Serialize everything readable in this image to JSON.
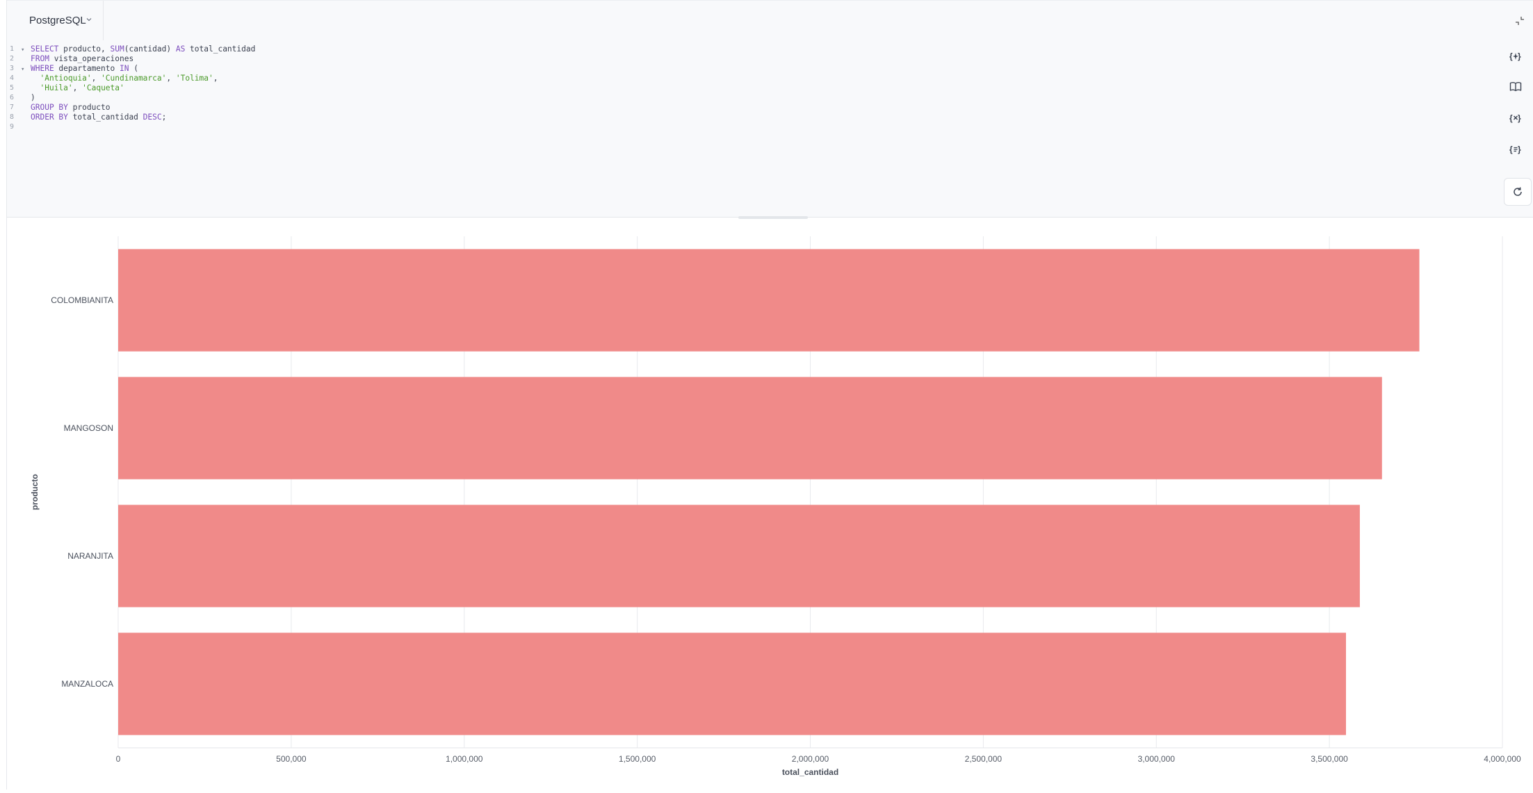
{
  "toolbar": {
    "dialect_label": "PostgreSQL",
    "dialect_chevron_icon": "chevron-down-icon",
    "collapse_icon": "collapse-arrows-icon"
  },
  "editor": {
    "lines": [
      {
        "n": "1",
        "fold": true
      },
      {
        "n": "2",
        "fold": false
      },
      {
        "n": "3",
        "fold": true
      },
      {
        "n": "4",
        "fold": false
      },
      {
        "n": "5",
        "fold": false
      },
      {
        "n": "6",
        "fold": false
      },
      {
        "n": "7",
        "fold": false
      },
      {
        "n": "8",
        "fold": false
      },
      {
        "n": "9",
        "fold": false
      }
    ],
    "tokens": {
      "l1": [
        "SELECT",
        " producto, ",
        "SUM",
        "(cantidad) ",
        "AS",
        " total_cantidad"
      ],
      "l2": [
        "FROM",
        " vista_operaciones"
      ],
      "l3": [
        "WHERE",
        " departamento ",
        "IN",
        " ("
      ],
      "l4": [
        "  ",
        "'Antioquia'",
        ", ",
        "'Cundinamarca'",
        ", ",
        "'Tolima'",
        ","
      ],
      "l5": [
        "  ",
        "'Huila'",
        ", ",
        "'Caqueta'"
      ],
      "l6": [
        ")"
      ],
      "l7": [
        "GROUP BY",
        " producto"
      ],
      "l8": [
        "ORDER BY",
        " total_cantidad ",
        "DESC",
        ";"
      ]
    },
    "side_tools": [
      {
        "name": "ai-assist-icon",
        "glyph": "{ }"
      },
      {
        "name": "book-icon",
        "glyph": ""
      },
      {
        "name": "variables-icon",
        "glyph": "{×}"
      },
      {
        "name": "format-icon",
        "glyph": "{≡}"
      }
    ],
    "refresh_icon": "refresh-icon"
  },
  "chart_data": {
    "type": "bar",
    "orientation": "horizontal",
    "categories": [
      "COLOMBIANITA",
      "MANGOSON",
      "NARANJITA",
      "MANZALOCA"
    ],
    "values": [
      3760000,
      3652000,
      3588000,
      3548000
    ],
    "xlabel": "total_cantidad",
    "ylabel": "producto",
    "xlim": [
      0,
      4000000
    ],
    "xticks": [
      0,
      500000,
      1000000,
      1500000,
      2000000,
      2500000,
      3000000,
      3500000,
      4000000
    ],
    "xtick_labels": [
      "0",
      "500,000",
      "1,000,000",
      "1,500,000",
      "2,000,000",
      "2,500,000",
      "3,000,000",
      "3,500,000",
      "4,000,000"
    ],
    "bar_color": "#f08a89",
    "grid": true
  }
}
